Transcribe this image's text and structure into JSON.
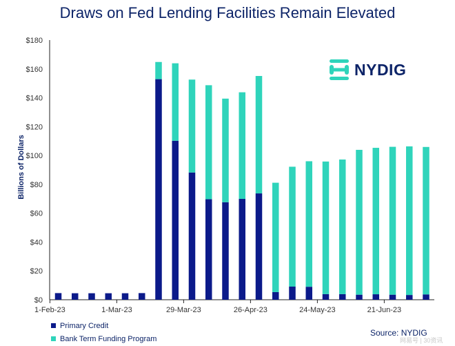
{
  "chart_data": {
    "type": "bar",
    "stacked": true,
    "title": "Draws on Fed Lending Facilities Remain Elevated",
    "ylabel": "Billions of Dollars",
    "xlabel": "",
    "ylim": [
      0,
      180
    ],
    "yticks": [
      "$0",
      "$20",
      "$40",
      "$60",
      "$80",
      "$100",
      "$120",
      "$140",
      "$160",
      "$180"
    ],
    "ytick_values": [
      0,
      20,
      40,
      60,
      80,
      100,
      120,
      140,
      160,
      180
    ],
    "xtick_labels": [
      {
        "label": "1-Feb-23",
        "index": -0.5
      },
      {
        "label": "1-Mar-23",
        "index": 3.5
      },
      {
        "label": "29-Mar-23",
        "index": 7.5
      },
      {
        "label": "26-Apr-23",
        "index": 11.5
      },
      {
        "label": "24-May-23",
        "index": 15.5
      },
      {
        "label": "21-Jun-23",
        "index": 19.5
      }
    ],
    "series": [
      {
        "name": "Primary Credit",
        "color": "#0b1a8a",
        "values": [
          4.6,
          4.5,
          4.5,
          4.5,
          4.5,
          4.6,
          152.9,
          110.2,
          88.2,
          69.7,
          67.6,
          69.9,
          73.7,
          5.3,
          9.1,
          9,
          3.9,
          3.9,
          3.5,
          3.8,
          3.5,
          3.3,
          3.7
        ]
      },
      {
        "name": "Bank Term Funding Program",
        "color": "#2fd4bb",
        "values": [
          0,
          0,
          0,
          0,
          0,
          0,
          11.9,
          53.7,
          64.4,
          79,
          71.8,
          73.9,
          81.4,
          75.8,
          83.1,
          87,
          91.9,
          93.3,
          100.4,
          101.5,
          102.5,
          103,
          102.2
        ]
      }
    ]
  },
  "logo": {
    "text": "NYDIG"
  },
  "source": "Source: NYDIG",
  "watermark": "网易号 | 30资讯",
  "colors": {
    "title": "#0d2468",
    "primary": "#0b1a8a",
    "btfp": "#2fd4bb",
    "axis": "#222222"
  }
}
